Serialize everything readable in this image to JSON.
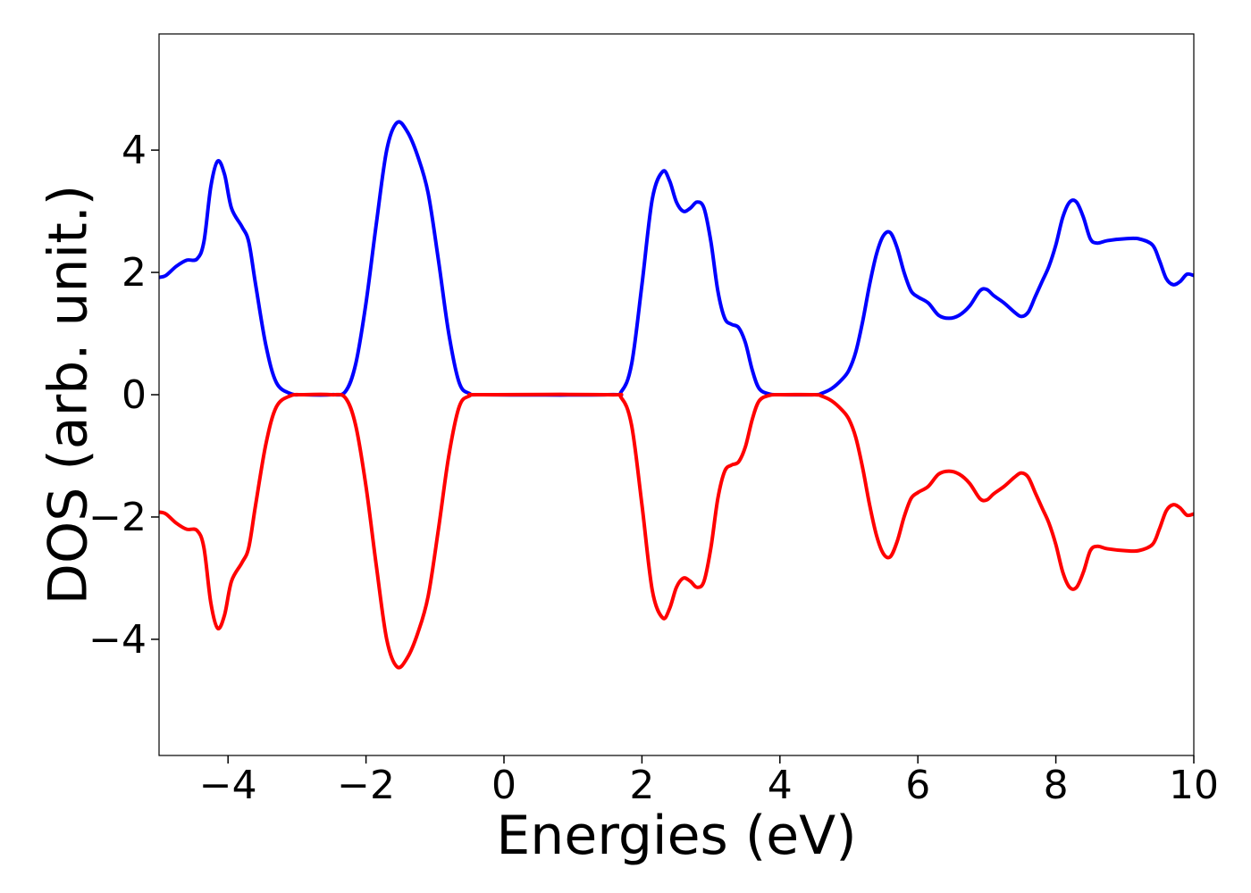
{
  "chart_data": {
    "type": "line",
    "xlabel": "Energies (eV)",
    "ylabel": "DOS (arb. unit.)",
    "xlim": [
      -5,
      10
    ],
    "ylim": [
      -5.9,
      5.9
    ],
    "xticks": [
      -4,
      -2,
      0,
      2,
      4,
      6,
      8,
      10
    ],
    "xtick_labels": [
      "−4",
      "−2",
      "0",
      "2",
      "4",
      "6",
      "8",
      "10"
    ],
    "yticks": [
      -4,
      -2,
      0,
      2,
      4
    ],
    "ytick_labels": [
      "−4",
      "−2",
      "0",
      "2",
      "4"
    ],
    "grid": false,
    "legend": "none",
    "series": [
      {
        "color": "#0000ff",
        "points": [
          [
            -5.0,
            1.92
          ],
          [
            -4.9,
            1.95
          ],
          [
            -4.75,
            2.1
          ],
          [
            -4.6,
            2.2
          ],
          [
            -4.45,
            2.22
          ],
          [
            -4.35,
            2.5
          ],
          [
            -4.25,
            3.4
          ],
          [
            -4.15,
            3.82
          ],
          [
            -4.05,
            3.6
          ],
          [
            -3.95,
            3.05
          ],
          [
            -3.8,
            2.75
          ],
          [
            -3.7,
            2.5
          ],
          [
            -3.6,
            1.8
          ],
          [
            -3.45,
            0.8
          ],
          [
            -3.3,
            0.2
          ],
          [
            -3.1,
            0.02
          ],
          [
            -2.9,
            0.0
          ],
          [
            -2.5,
            0.0
          ],
          [
            -2.3,
            0.05
          ],
          [
            -2.15,
            0.5
          ],
          [
            -2.0,
            1.5
          ],
          [
            -1.85,
            2.8
          ],
          [
            -1.7,
            4.0
          ],
          [
            -1.55,
            4.45
          ],
          [
            -1.4,
            4.3
          ],
          [
            -1.25,
            3.9
          ],
          [
            -1.1,
            3.3
          ],
          [
            -0.95,
            2.2
          ],
          [
            -0.8,
            1.0
          ],
          [
            -0.65,
            0.2
          ],
          [
            -0.5,
            0.02
          ],
          [
            -0.3,
            0.0
          ],
          [
            1.5,
            0.0
          ],
          [
            1.7,
            0.05
          ],
          [
            1.85,
            0.5
          ],
          [
            2.0,
            1.8
          ],
          [
            2.15,
            3.2
          ],
          [
            2.3,
            3.65
          ],
          [
            2.4,
            3.5
          ],
          [
            2.5,
            3.15
          ],
          [
            2.6,
            3.0
          ],
          [
            2.7,
            3.05
          ],
          [
            2.8,
            3.15
          ],
          [
            2.9,
            3.05
          ],
          [
            3.0,
            2.5
          ],
          [
            3.1,
            1.7
          ],
          [
            3.2,
            1.25
          ],
          [
            3.3,
            1.15
          ],
          [
            3.4,
            1.1
          ],
          [
            3.5,
            0.85
          ],
          [
            3.6,
            0.4
          ],
          [
            3.7,
            0.1
          ],
          [
            3.85,
            0.01
          ],
          [
            4.0,
            0.0
          ],
          [
            4.5,
            0.0
          ],
          [
            4.6,
            0.02
          ],
          [
            4.75,
            0.1
          ],
          [
            4.9,
            0.25
          ],
          [
            5.0,
            0.4
          ],
          [
            5.1,
            0.7
          ],
          [
            5.2,
            1.2
          ],
          [
            5.3,
            1.8
          ],
          [
            5.4,
            2.3
          ],
          [
            5.5,
            2.6
          ],
          [
            5.6,
            2.65
          ],
          [
            5.7,
            2.4
          ],
          [
            5.8,
            2.0
          ],
          [
            5.9,
            1.7
          ],
          [
            6.0,
            1.6
          ],
          [
            6.15,
            1.5
          ],
          [
            6.3,
            1.3
          ],
          [
            6.45,
            1.25
          ],
          [
            6.6,
            1.3
          ],
          [
            6.75,
            1.45
          ],
          [
            6.9,
            1.7
          ],
          [
            7.0,
            1.72
          ],
          [
            7.1,
            1.62
          ],
          [
            7.25,
            1.5
          ],
          [
            7.4,
            1.35
          ],
          [
            7.5,
            1.28
          ],
          [
            7.6,
            1.35
          ],
          [
            7.7,
            1.6
          ],
          [
            7.8,
            1.85
          ],
          [
            7.9,
            2.1
          ],
          [
            8.0,
            2.45
          ],
          [
            8.1,
            2.9
          ],
          [
            8.2,
            3.15
          ],
          [
            8.3,
            3.15
          ],
          [
            8.4,
            2.9
          ],
          [
            8.5,
            2.55
          ],
          [
            8.6,
            2.48
          ],
          [
            8.75,
            2.52
          ],
          [
            9.0,
            2.55
          ],
          [
            9.2,
            2.55
          ],
          [
            9.4,
            2.45
          ],
          [
            9.5,
            2.2
          ],
          [
            9.6,
            1.9
          ],
          [
            9.7,
            1.8
          ],
          [
            9.8,
            1.85
          ],
          [
            9.9,
            1.97
          ],
          [
            10.0,
            1.95
          ]
        ]
      },
      {
        "color": "#ff0000",
        "points": [
          [
            -5.0,
            -1.92
          ],
          [
            -4.9,
            -1.95
          ],
          [
            -4.75,
            -2.1
          ],
          [
            -4.6,
            -2.2
          ],
          [
            -4.45,
            -2.22
          ],
          [
            -4.35,
            -2.5
          ],
          [
            -4.25,
            -3.4
          ],
          [
            -4.15,
            -3.82
          ],
          [
            -4.05,
            -3.6
          ],
          [
            -3.95,
            -3.05
          ],
          [
            -3.8,
            -2.75
          ],
          [
            -3.7,
            -2.5
          ],
          [
            -3.6,
            -1.8
          ],
          [
            -3.45,
            -0.8
          ],
          [
            -3.3,
            -0.2
          ],
          [
            -3.1,
            -0.02
          ],
          [
            -2.9,
            0.0
          ],
          [
            -2.5,
            0.0
          ],
          [
            -2.3,
            -0.05
          ],
          [
            -2.15,
            -0.5
          ],
          [
            -2.0,
            -1.5
          ],
          [
            -1.85,
            -2.8
          ],
          [
            -1.7,
            -4.0
          ],
          [
            -1.55,
            -4.45
          ],
          [
            -1.4,
            -4.3
          ],
          [
            -1.25,
            -3.9
          ],
          [
            -1.1,
            -3.3
          ],
          [
            -0.95,
            -2.2
          ],
          [
            -0.8,
            -1.0
          ],
          [
            -0.65,
            -0.2
          ],
          [
            -0.5,
            -0.02
          ],
          [
            -0.3,
            0.0
          ],
          [
            1.5,
            0.0
          ],
          [
            1.7,
            -0.05
          ],
          [
            1.85,
            -0.5
          ],
          [
            2.0,
            -1.8
          ],
          [
            2.15,
            -3.2
          ],
          [
            2.3,
            -3.65
          ],
          [
            2.4,
            -3.5
          ],
          [
            2.5,
            -3.15
          ],
          [
            2.6,
            -3.0
          ],
          [
            2.7,
            -3.05
          ],
          [
            2.8,
            -3.15
          ],
          [
            2.9,
            -3.05
          ],
          [
            3.0,
            -2.5
          ],
          [
            3.1,
            -1.7
          ],
          [
            3.2,
            -1.25
          ],
          [
            3.3,
            -1.15
          ],
          [
            3.4,
            -1.1
          ],
          [
            3.5,
            -0.85
          ],
          [
            3.6,
            -0.4
          ],
          [
            3.7,
            -0.1
          ],
          [
            3.85,
            -0.01
          ],
          [
            4.0,
            0.0
          ],
          [
            4.5,
            0.0
          ],
          [
            4.6,
            -0.02
          ],
          [
            4.75,
            -0.1
          ],
          [
            4.9,
            -0.25
          ],
          [
            5.0,
            -0.4
          ],
          [
            5.1,
            -0.7
          ],
          [
            5.2,
            -1.2
          ],
          [
            5.3,
            -1.8
          ],
          [
            5.4,
            -2.3
          ],
          [
            5.5,
            -2.6
          ],
          [
            5.6,
            -2.65
          ],
          [
            5.7,
            -2.4
          ],
          [
            5.8,
            -2.0
          ],
          [
            5.9,
            -1.7
          ],
          [
            6.0,
            -1.6
          ],
          [
            6.15,
            -1.5
          ],
          [
            6.3,
            -1.3
          ],
          [
            6.45,
            -1.25
          ],
          [
            6.6,
            -1.3
          ],
          [
            6.75,
            -1.45
          ],
          [
            6.9,
            -1.7
          ],
          [
            7.0,
            -1.72
          ],
          [
            7.1,
            -1.62
          ],
          [
            7.25,
            -1.5
          ],
          [
            7.4,
            -1.35
          ],
          [
            7.5,
            -1.28
          ],
          [
            7.6,
            -1.35
          ],
          [
            7.7,
            -1.6
          ],
          [
            7.8,
            -1.85
          ],
          [
            7.9,
            -2.1
          ],
          [
            8.0,
            -2.45
          ],
          [
            8.1,
            -2.9
          ],
          [
            8.2,
            -3.15
          ],
          [
            8.3,
            -3.15
          ],
          [
            8.4,
            -2.9
          ],
          [
            8.5,
            -2.55
          ],
          [
            8.6,
            -2.48
          ],
          [
            8.75,
            -2.52
          ],
          [
            9.0,
            -2.55
          ],
          [
            9.2,
            -2.55
          ],
          [
            9.4,
            -2.45
          ],
          [
            9.5,
            -2.2
          ],
          [
            9.6,
            -1.9
          ],
          [
            9.7,
            -1.8
          ],
          [
            9.8,
            -1.85
          ],
          [
            9.9,
            -1.97
          ],
          [
            10.0,
            -1.95
          ]
        ]
      }
    ]
  }
}
